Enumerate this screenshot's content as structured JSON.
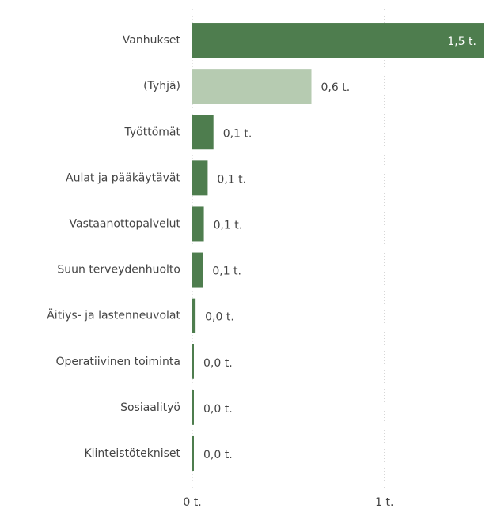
{
  "chart_data": {
    "type": "bar",
    "orientation": "horizontal",
    "categories": [
      "Vanhukset",
      "(Tyhjä)",
      "Työttömät",
      "Aulat ja pääkäytävät",
      "Vastaanottopalvelut",
      "Suun terveydenhuolto",
      "Äitiys- ja lastenneuvolat",
      "Operatiivinen toiminta",
      "Sosiaalityö",
      "Kiinteistötekniset"
    ],
    "values": [
      1.52,
      0.62,
      0.11,
      0.08,
      0.06,
      0.055,
      0.017,
      0.008,
      0.004,
      0.004
    ],
    "value_labels": [
      "1,5 t.",
      "0,6 t.",
      "0,1 t.",
      "0,1 t.",
      "0,1 t.",
      "0,1 t.",
      "0,0 t.",
      "0,0 t.",
      "0,0 t.",
      "0,0 t."
    ],
    "colors": [
      "#4e7d4e",
      "#b6cbb1",
      "#4e7d4e",
      "#4e7d4e",
      "#4e7d4e",
      "#4e7d4e",
      "#4e7d4e",
      "#4e7d4e",
      "#4e7d4e",
      "#4e7d4e"
    ],
    "xlim": [
      0,
      1.52
    ],
    "xticks": [
      {
        "value": 0,
        "label": "0 t."
      },
      {
        "value": 1,
        "label": "1 t."
      }
    ],
    "grid": true
  }
}
